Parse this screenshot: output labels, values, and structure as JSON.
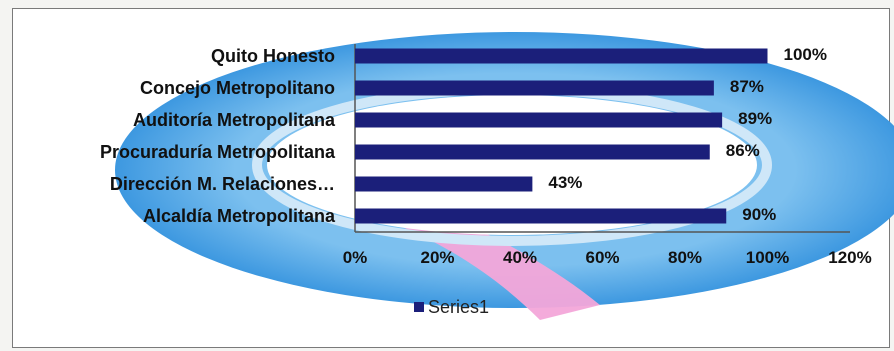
{
  "chart_data": {
    "type": "bar",
    "orientation": "horizontal",
    "categories": [
      "Quito Honesto",
      "Concejo Metropolitano",
      "Auditoría Metropolitana",
      "Procuraduría Metropolitana",
      "Dirección M. Relaciones…",
      "Alcaldía Metropolitana"
    ],
    "series": [
      {
        "name": "Series1",
        "values": [
          100,
          87,
          89,
          86,
          43,
          90
        ]
      }
    ],
    "data_labels": [
      "100%",
      "87%",
      "89%",
      "86%",
      "43%",
      "90%"
    ],
    "x_ticks": [
      "0%",
      "20%",
      "40%",
      "60%",
      "80%",
      "100%",
      "120%"
    ],
    "xlim": [
      0,
      120
    ],
    "legend_position": "bottom",
    "colors": {
      "bar": "#1b1f7a",
      "ring": "#4aa3e6",
      "ring_inner": "#9fd0f2",
      "band": "#f3a6d9"
    }
  }
}
